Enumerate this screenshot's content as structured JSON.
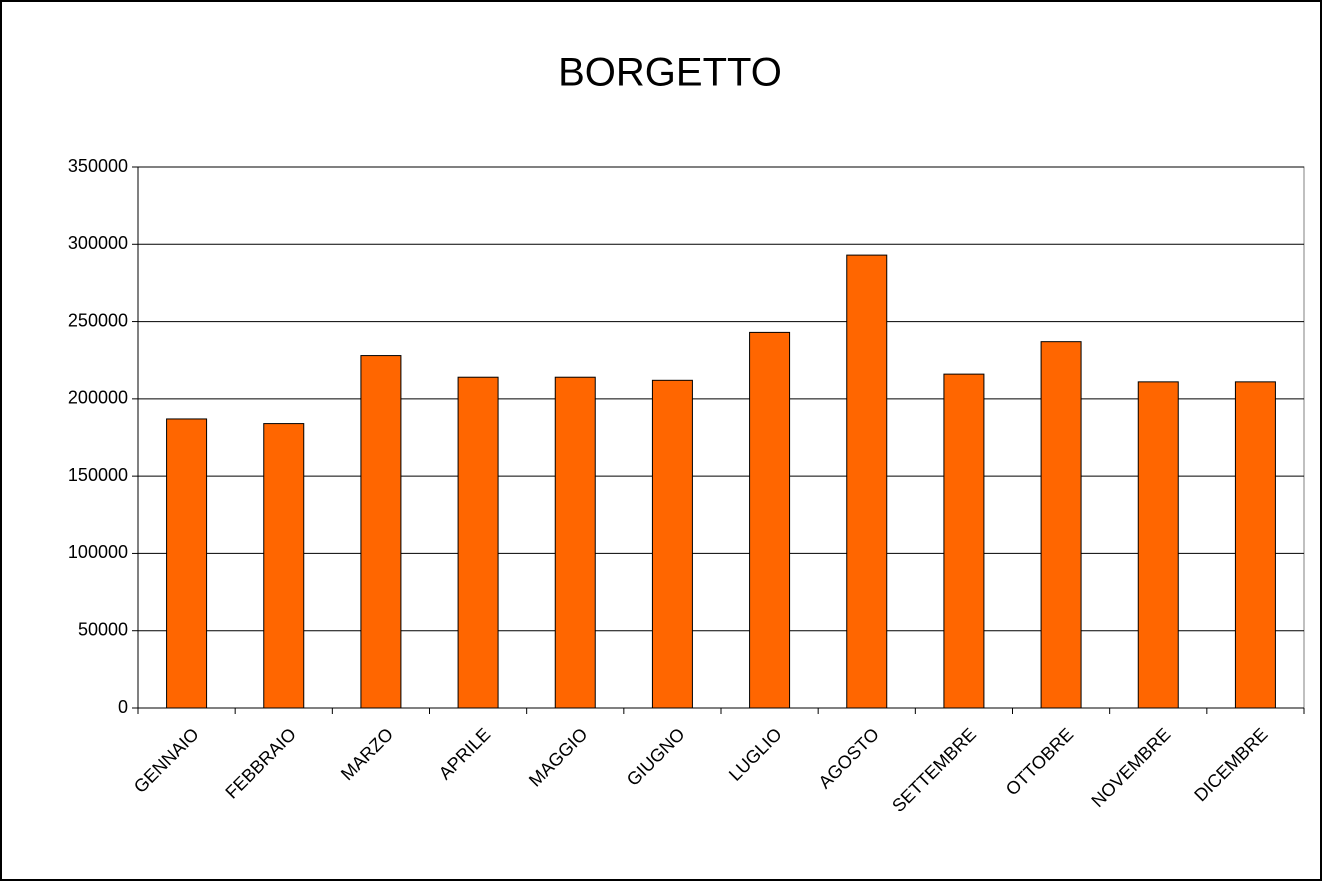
{
  "chart_data": {
    "type": "bar",
    "title": "BORGETTO",
    "categories": [
      "GENNAIO",
      "FEBBRAIO",
      "MARZO",
      "APRILE",
      "MAGGIO",
      "GIUGNO",
      "LUGLIO",
      "AGOSTO",
      "SETTEMBRE",
      "OTTOBRE",
      "NOVEMBRE",
      "DICEMBRE"
    ],
    "values": [
      187000,
      184000,
      228000,
      214000,
      214000,
      212000,
      243000,
      293000,
      216000,
      237000,
      211000,
      211000
    ],
    "color": "#ff6600",
    "ylim": [
      0,
      350000
    ],
    "yticks": [
      0,
      50000,
      100000,
      150000,
      200000,
      250000,
      300000,
      350000
    ],
    "grid": true
  }
}
